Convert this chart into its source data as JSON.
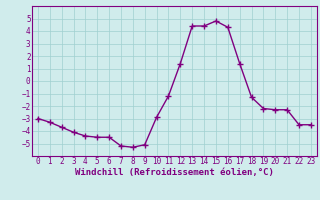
{
  "x": [
    0,
    1,
    2,
    3,
    4,
    5,
    6,
    7,
    8,
    9,
    10,
    11,
    12,
    13,
    14,
    15,
    16,
    17,
    18,
    19,
    20,
    21,
    22,
    23
  ],
  "y": [
    -3.0,
    -3.3,
    -3.7,
    -4.1,
    -4.4,
    -4.5,
    -4.5,
    -5.2,
    -5.3,
    -5.1,
    -2.9,
    -1.2,
    1.4,
    4.4,
    4.4,
    4.8,
    4.3,
    1.4,
    -1.3,
    -2.2,
    -2.3,
    -2.3,
    -3.5,
    -3.5
  ],
  "line_color": "#800080",
  "marker": "+",
  "marker_size": 4,
  "line_width": 1.0,
  "xlabel": "Windchill (Refroidissement éolien,°C)",
  "xlabel_fontsize": 6.5,
  "ylim": [
    -6,
    6
  ],
  "xlim": [
    -0.5,
    23.5
  ],
  "yticks": [
    -5,
    -4,
    -3,
    -2,
    -1,
    0,
    1,
    2,
    3,
    4,
    5
  ],
  "xticks": [
    0,
    1,
    2,
    3,
    4,
    5,
    6,
    7,
    8,
    9,
    10,
    11,
    12,
    13,
    14,
    15,
    16,
    17,
    18,
    19,
    20,
    21,
    22,
    23
  ],
  "grid_color": "#a0d0d0",
  "background_color": "#d0ecec",
  "tick_fontsize": 5.5,
  "tick_color": "#800080",
  "spine_color": "#800080"
}
